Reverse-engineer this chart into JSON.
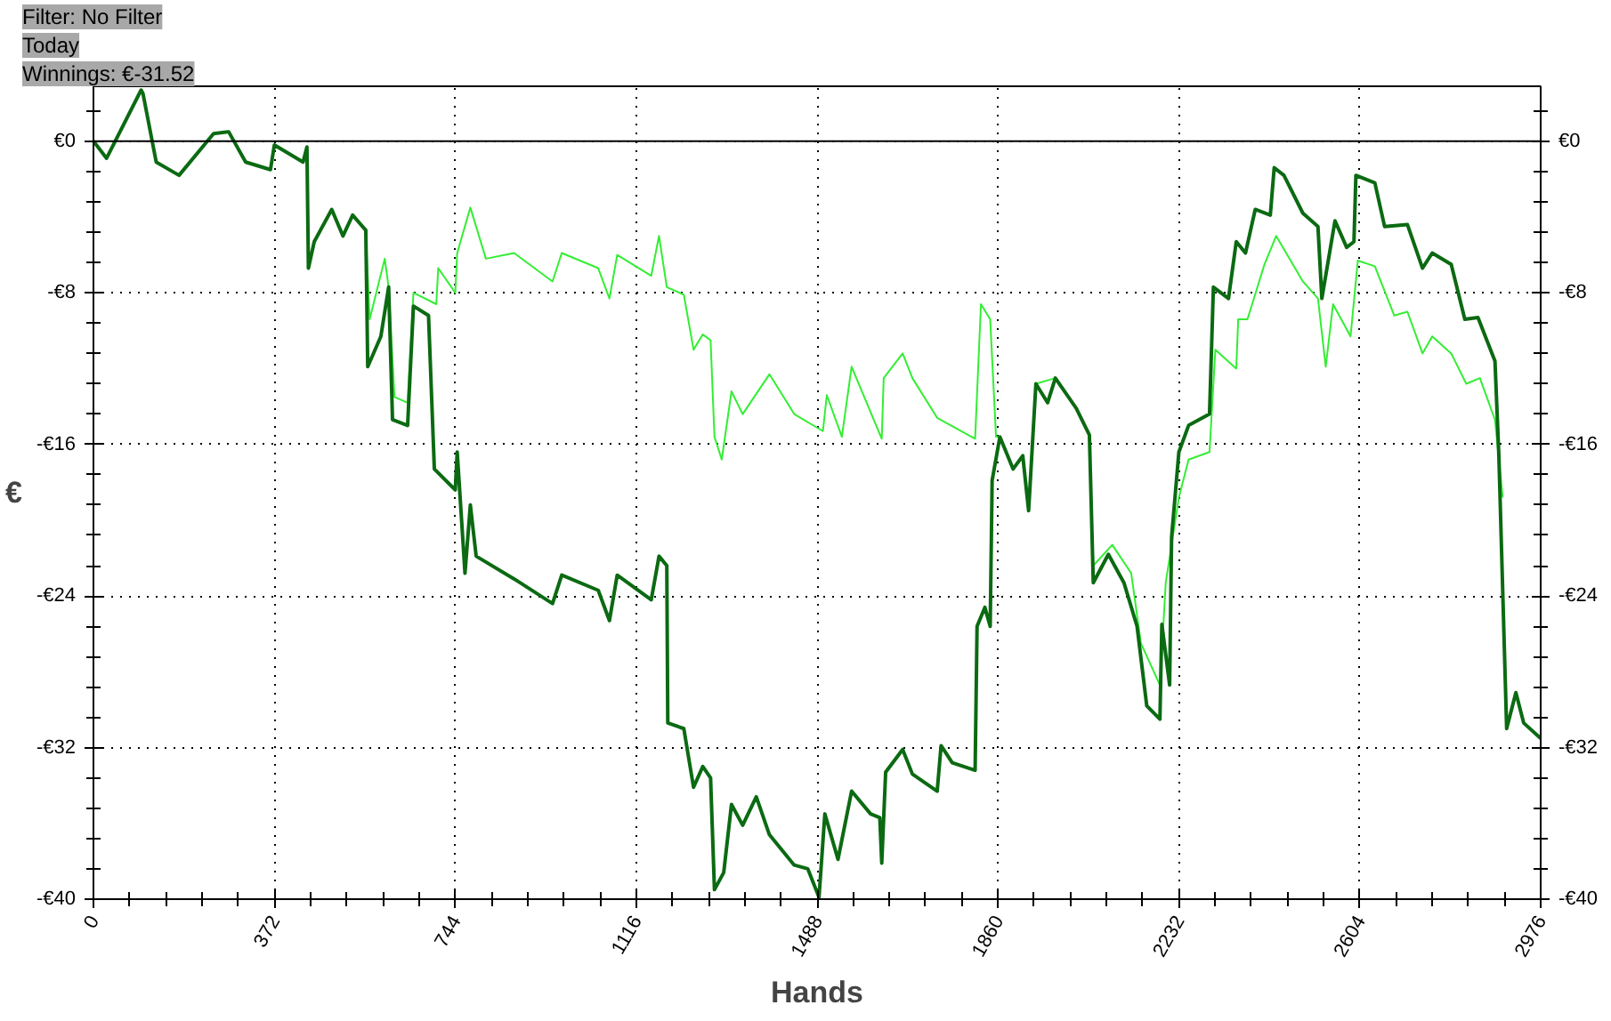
{
  "chart_data": {
    "type": "line",
    "xlabel": "Hands",
    "ylabel": "€",
    "annotations": [
      "Filter: No Filter",
      "Today",
      "Winnings: €-31.52"
    ],
    "xlim": [
      0,
      2976
    ],
    "ylim": [
      -40,
      2.9
    ],
    "y2lim": [
      -40,
      2.9
    ],
    "xticks": [
      0,
      {
        "value": 74.4,
        "label": null
      },
      {
        "value": 148.8,
        "label": null
      },
      {
        "value": 223.2,
        "label": null
      },
      {
        "value": 297.6,
        "label": null
      },
      372,
      {
        "value": 446.4,
        "label": null
      },
      {
        "value": 520.8,
        "label": null
      },
      {
        "value": 595.2,
        "label": null
      },
      {
        "value": 669.6,
        "label": null
      },
      744,
      {
        "value": 818.4,
        "label": null
      },
      {
        "value": 892.8,
        "label": null
      },
      {
        "value": 967.2,
        "label": null
      },
      {
        "value": 1041.6,
        "label": null
      },
      1116,
      {
        "value": 1190.4,
        "label": null
      },
      {
        "value": 1264.8,
        "label": null
      },
      {
        "value": 1339.2,
        "label": null
      },
      {
        "value": 1413.6,
        "label": null
      },
      1488,
      {
        "value": 1562.4,
        "label": null
      },
      {
        "value": 1636.8,
        "label": null
      },
      {
        "value": 1711.2,
        "label": null
      },
      {
        "value": 1785.6,
        "label": null
      },
      1860,
      {
        "value": 1934.4,
        "label": null
      },
      {
        "value": 2008.8,
        "label": null
      },
      {
        "value": 2083.2,
        "label": null
      },
      {
        "value": 2157.6,
        "label": null
      },
      2232,
      {
        "value": 2306.4,
        "label": null
      },
      {
        "value": 2380.8,
        "label": null
      },
      {
        "value": 2455.2,
        "label": null
      },
      {
        "value": 2529.6,
        "label": null
      },
      2604,
      {
        "value": 2678.4,
        "label": null
      },
      {
        "value": 2752.8,
        "label": null
      },
      {
        "value": 2827.2,
        "label": null
      },
      {
        "value": 2901.6,
        "label": null
      },
      2976
    ],
    "yticks": [
      {
        "value": 1.6,
        "label": null
      },
      {
        "value": 0,
        "label": "€0"
      },
      {
        "value": -1.6,
        "label": null
      },
      {
        "value": -3.2,
        "label": null
      },
      {
        "value": -4.8,
        "label": null
      },
      {
        "value": -6.4,
        "label": null
      },
      {
        "value": -8,
        "label": "-€8"
      },
      {
        "value": -9.6,
        "label": null
      },
      {
        "value": -11.2,
        "label": null
      },
      {
        "value": -12.8,
        "label": null
      },
      {
        "value": -14.4,
        "label": null
      },
      {
        "value": -16,
        "label": "-€16"
      },
      {
        "value": -17.6,
        "label": null
      },
      {
        "value": -19.2,
        "label": null
      },
      {
        "value": -20.8,
        "label": null
      },
      {
        "value": -22.4,
        "label": null
      },
      {
        "value": -24,
        "label": "-€24"
      },
      {
        "value": -25.6,
        "label": null
      },
      {
        "value": -27.2,
        "label": null
      },
      {
        "value": -28.8,
        "label": null
      },
      {
        "value": -30.4,
        "label": null
      },
      {
        "value": -32,
        "label": "-€32"
      },
      {
        "value": -33.6,
        "label": null
      },
      {
        "value": -35.2,
        "label": null
      },
      {
        "value": -36.8,
        "label": null
      },
      {
        "value": -38.4,
        "label": null
      },
      {
        "value": -40,
        "label": "-€40"
      }
    ],
    "y2ticks": [
      {
        "value": 1.6,
        "label": null
      },
      {
        "value": 0,
        "label": "€0"
      },
      {
        "value": -1.6,
        "label": null
      },
      {
        "value": -3.2,
        "label": null
      },
      {
        "value": -4.8,
        "label": null
      },
      {
        "value": -6.4,
        "label": null
      },
      {
        "value": -8,
        "label": "-€8"
      },
      {
        "value": -9.6,
        "label": null
      },
      {
        "value": -11.2,
        "label": null
      },
      {
        "value": -12.8,
        "label": null
      },
      {
        "value": -14.4,
        "label": null
      },
      {
        "value": -16,
        "label": "-€16"
      },
      {
        "value": -17.6,
        "label": null
      },
      {
        "value": -19.2,
        "label": null
      },
      {
        "value": -20.8,
        "label": null
      },
      {
        "value": -22.4,
        "label": null
      },
      {
        "value": -24,
        "label": "-€24"
      },
      {
        "value": -25.6,
        "label": null
      },
      {
        "value": -27.2,
        "label": null
      },
      {
        "value": -28.8,
        "label": null
      },
      {
        "value": -30.4,
        "label": null
      },
      {
        "value": -32,
        "label": "-€32"
      },
      {
        "value": -33.6,
        "label": null
      },
      {
        "value": -35.2,
        "label": null
      },
      {
        "value": -36.8,
        "label": null
      },
      {
        "value": -38.4,
        "label": null
      },
      {
        "value": -40,
        "label": "-€40"
      }
    ],
    "grid": true,
    "marker": "none",
    "line_style": "solid",
    "ref_lines": [
      {
        "axis": "y",
        "value": 0,
        "color": "#000000"
      }
    ],
    "series": [
      {
        "color": "#33ee33",
        "x": [
          560,
          568,
          599,
          607,
          619,
          646,
          658,
          705,
          709,
          744,
          748,
          775,
          807,
          865,
          944,
          963,
          1038,
          1061,
          1077,
          1147,
          1163,
          1179,
          1214,
          1234,
          1253,
          1269,
          1277,
          1292,
          1312,
          1335,
          1390,
          1441,
          1500,
          1508,
          1539,
          1559,
          1621,
          1625,
          1664,
          1684,
          1735,
          1813,
          1825,
          1844,
          1856,
          1864,
          1891,
          1911,
          1923,
          1938,
          1978,
          2021,
          2048,
          2056,
          2095,
          2134,
          2154,
          2193,
          2205,
          2232,
          2252,
          2295,
          2307,
          2350,
          2354,
          2373,
          2408,
          2432,
          2487,
          2518,
          2534,
          2549,
          2585,
          2600,
          2635,
          2675,
          2702,
          2733,
          2753,
          2792,
          2823,
          2851,
          2882,
          2890,
          2898
        ],
        "values": [
          -4.7,
          -9.4,
          -6.2,
          -7.7,
          -13.5,
          -13.8,
          -8.0,
          -8.6,
          -6.7,
          -8.0,
          -5.9,
          -3.5,
          -6.2,
          -5.9,
          -7.4,
          -5.9,
          -6.7,
          -8.3,
          -6.0,
          -7.1,
          -5.0,
          -7.7,
          -8.1,
          -11.0,
          -10.2,
          -10.5,
          -15.6,
          -16.8,
          -13.2,
          -14.4,
          -12.3,
          -14.4,
          -15.3,
          -13.4,
          -15.6,
          -11.9,
          -15.7,
          -12.5,
          -11.2,
          -12.5,
          -14.6,
          -15.7,
          -8.6,
          -9.4,
          -15.6,
          -15.6,
          -17.3,
          -16.6,
          -19.5,
          -12.8,
          -12.5,
          -14.1,
          -15.5,
          -22.4,
          -21.3,
          -22.8,
          -26.5,
          -28.7,
          -23.3,
          -18.8,
          -16.8,
          -16.4,
          -11.0,
          -12.0,
          -9.4,
          -9.4,
          -6.5,
          -5.0,
          -7.4,
          -8.3,
          -11.9,
          -8.6,
          -10.3,
          -6.3,
          -6.6,
          -9.2,
          -9.0,
          -11.2,
          -10.3,
          -11.2,
          -12.8,
          -12.5,
          -14.7,
          -16.8,
          -18.8
        ]
      },
      {
        "color": "#0b6a12",
        "x": [
          0,
          27,
          98,
          102,
          129,
          176,
          247,
          278,
          313,
          364,
          372,
          431,
          439,
          442,
          454,
          490,
          513,
          533,
          560,
          564,
          591,
          607,
          615,
          646,
          658,
          689,
          701,
          744,
          748,
          764,
          775,
          787,
          865,
          944,
          963,
          1038,
          1061,
          1077,
          1147,
          1163,
          1179,
          1181,
          1214,
          1234,
          1253,
          1269,
          1277,
          1296,
          1312,
          1335,
          1363,
          1390,
          1441,
          1469,
          1492,
          1504,
          1531,
          1559,
          1598,
          1617,
          1621,
          1629,
          1664,
          1684,
          1735,
          1743,
          1766,
          1813,
          1817,
          1833,
          1844,
          1848,
          1864,
          1891,
          1911,
          1923,
          1938,
          1962,
          1978,
          2021,
          2048,
          2056,
          2087,
          2119,
          2146,
          2166,
          2193,
          2197,
          2213,
          2217,
          2232,
          2252,
          2295,
          2303,
          2334,
          2350,
          2369,
          2389,
          2420,
          2428,
          2448,
          2487,
          2518,
          2526,
          2553,
          2577,
          2592,
          2596,
          2635,
          2655,
          2702,
          2733,
          2753,
          2792,
          2820,
          2847,
          2882,
          2890,
          2906,
          2925,
          2941,
          2976
        ],
        "values": [
          0,
          -0.9,
          2.7,
          2.5,
          -1.1,
          -1.8,
          0.4,
          0.5,
          -1.1,
          -1.5,
          -0.2,
          -1.1,
          -0.3,
          -6.7,
          -5.3,
          -3.6,
          -5.0,
          -3.9,
          -4.7,
          -11.9,
          -10.3,
          -7.7,
          -14.7,
          -15.0,
          -8.7,
          -9.2,
          -17.3,
          -18.4,
          -16.4,
          -22.8,
          -19.2,
          -21.9,
          -23.1,
          -24.4,
          -22.9,
          -23.7,
          -25.3,
          -22.9,
          -24.2,
          -21.9,
          -22.4,
          -30.7,
          -31.0,
          -34.1,
          -33.0,
          -33.6,
          -39.5,
          -38.6,
          -35.0,
          -36.1,
          -34.6,
          -36.6,
          -38.2,
          -38.4,
          -39.9,
          -35.5,
          -37.9,
          -34.3,
          -35.5,
          -35.7,
          -38.1,
          -33.3,
          -32.1,
          -33.4,
          -34.3,
          -31.9,
          -32.8,
          -33.2,
          -25.6,
          -24.6,
          -25.6,
          -17.9,
          -15.6,
          -17.3,
          -16.6,
          -19.5,
          -12.8,
          -13.8,
          -12.5,
          -14.1,
          -15.5,
          -23.3,
          -21.8,
          -23.3,
          -25.6,
          -29.8,
          -30.5,
          -25.5,
          -28.7,
          -20.9,
          -16.4,
          -15.0,
          -14.4,
          -7.7,
          -8.3,
          -5.3,
          -5.9,
          -3.6,
          -3.9,
          -1.4,
          -1.8,
          -3.8,
          -4.5,
          -8.3,
          -4.2,
          -5.6,
          -5.3,
          -1.8,
          -2.2,
          -4.5,
          -4.4,
          -6.7,
          -5.9,
          -6.5,
          -9.4,
          -9.3,
          -11.6,
          -16.6,
          -31.0,
          -29.1,
          -30.7,
          -31.52
        ]
      }
    ]
  }
}
